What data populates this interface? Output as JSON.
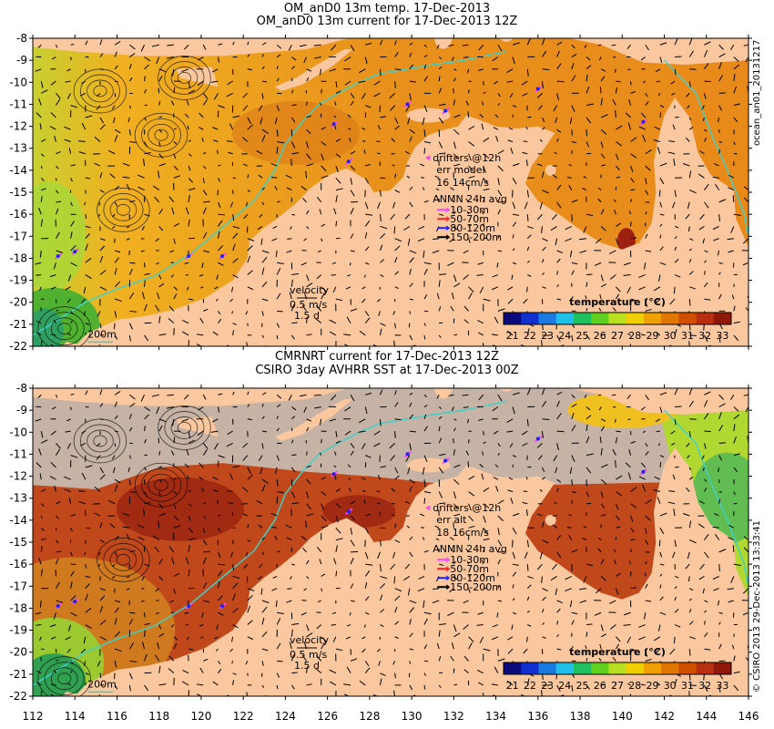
{
  "top_panel": {
    "title_line1": "OM_anD0 13m temp. 17-Dec-2013",
    "title_line2": "OM_anD0 13m current for 17-Dec-2013 12Z",
    "side_label": "ocean_an01_20131217",
    "legend": {
      "drifters": "drifters @12h",
      "err": "err model",
      "err_vals": "16 14cm/s",
      "anmn_title": "ANMN 24h avg",
      "anmn_items": [
        "10-30m",
        "50-70m",
        "80-120m",
        "150-200m"
      ]
    }
  },
  "bottom_panel": {
    "title_line1": "CMRNRT current for 17-Dec-2013 12Z",
    "title_line2": "CSIRO 3day AVHRR SST at 17-Dec-2013 00Z",
    "side_label": "© CSIRO 2013   29-Dec-2013 13:33:41",
    "legend": {
      "drifters": "drifters @12h",
      "err": "err alt",
      "err_vals": "18 16cm/s",
      "anmn_title": "ANMN 24h avg",
      "anmn_items": [
        "10-30m",
        "50-70m",
        "80-120m",
        "150-200m"
      ]
    }
  },
  "velocity_key": {
    "title": "velocity",
    "speed": "0.5 m/s",
    "duration": "1.5 d"
  },
  "isobath_label": "200m",
  "colorbar": {
    "title": "temperature (°C)",
    "ticks": [
      "21",
      "22",
      "23",
      "24",
      "25",
      "26",
      "27",
      "28",
      "29",
      "30",
      "31",
      "32",
      "33"
    ],
    "colors": [
      "#0a0a7a",
      "#1030d0",
      "#1a7ae0",
      "#20c0e8",
      "#20c060",
      "#60d020",
      "#b8e020",
      "#f0d000",
      "#f0a000",
      "#e07800",
      "#d05000",
      "#b83010",
      "#901808"
    ]
  },
  "axes": {
    "lon_ticks": [
      "112",
      "114",
      "116",
      "118",
      "120",
      "122",
      "124",
      "126",
      "128",
      "130",
      "132",
      "134",
      "136",
      "138",
      "140",
      "142",
      "144",
      "146"
    ],
    "lat_ticks": [
      "-8",
      "-9",
      "-10",
      "-11",
      "-12",
      "-13",
      "-14",
      "-15",
      "-16",
      "-17",
      "-18",
      "-19",
      "-20",
      "-21",
      "-22"
    ]
  },
  "colors": {
    "land": "#fac79e",
    "sea_warm": "#e88a1a",
    "sea_mid": "#f0a81e",
    "sea_cool": "#b0d830",
    "no_data": "#c6b3a6",
    "isobath": "#40d0c8",
    "drifter": "#ff40ff",
    "anmn_colors": [
      "#ff40ff",
      "#ff2020",
      "#2020ff",
      "#000000"
    ]
  }
}
